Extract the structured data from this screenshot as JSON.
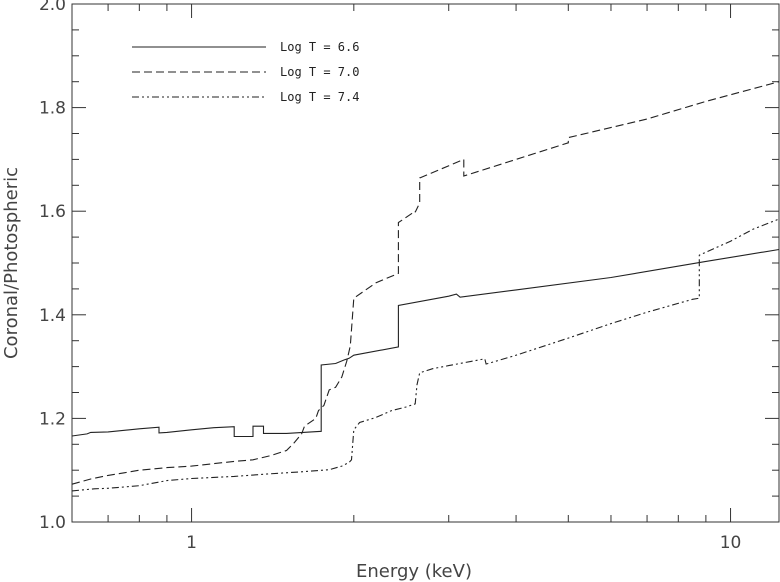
{
  "chart_data": {
    "type": "line",
    "title": "",
    "xlabel": "Energy (keV)",
    "ylabel": "Coronal/Photospheric",
    "x_scale": "log",
    "xlim": [
      0.6,
      12.3
    ],
    "ylim": [
      1.0,
      2.0
    ],
    "x_tick_labels": [
      {
        "value": 1,
        "label": "1"
      },
      {
        "value": 10,
        "label": "10"
      }
    ],
    "y_tick_labels": [
      {
        "value": 1.0,
        "label": "1.0"
      },
      {
        "value": 1.2,
        "label": "1.2"
      },
      {
        "value": 1.4,
        "label": "1.4"
      },
      {
        "value": 1.6,
        "label": "1.6"
      },
      {
        "value": 1.8,
        "label": "1.8"
      },
      {
        "value": 2.0,
        "label": "2.0"
      }
    ],
    "legend_position": "top-left",
    "series": [
      {
        "name": "Log T = 6.6",
        "style": "solid",
        "color": "#222222",
        "x": [
          0.6,
          0.64,
          0.65,
          0.7,
          0.8,
          0.87,
          0.87,
          0.9,
          1.0,
          1.1,
          1.2,
          1.2,
          1.3,
          1.3,
          1.36,
          1.36,
          1.4,
          1.5,
          1.74,
          1.74,
          1.85,
          1.92,
          1.96,
          2.0,
          2.42,
          2.42,
          3.0,
          3.1,
          3.15,
          4.0,
          6.0,
          9.0,
          12.3
        ],
        "y": [
          1.166,
          1.17,
          1.173,
          1.174,
          1.18,
          1.183,
          1.172,
          1.173,
          1.178,
          1.182,
          1.184,
          1.165,
          1.165,
          1.185,
          1.185,
          1.171,
          1.171,
          1.171,
          1.175,
          1.303,
          1.306,
          1.313,
          1.316,
          1.322,
          1.338,
          1.418,
          1.436,
          1.44,
          1.434,
          1.448,
          1.472,
          1.503,
          1.526
        ]
      },
      {
        "name": "Log T = 7.0",
        "style": "dashed",
        "color": "#222222",
        "x": [
          0.6,
          0.65,
          0.7,
          0.75,
          0.8,
          0.9,
          1.0,
          1.2,
          1.3,
          1.4,
          1.5,
          1.55,
          1.6,
          1.62,
          1.7,
          1.72,
          1.76,
          1.8,
          1.85,
          1.9,
          1.94,
          1.97,
          2.0,
          2.2,
          2.42,
          2.42,
          2.6,
          2.6,
          2.65,
          2.65,
          3.2,
          3.2,
          4.0,
          5.0,
          5.0,
          7.0,
          9.0,
          12.3
        ],
        "y": [
          1.073,
          1.083,
          1.09,
          1.095,
          1.1,
          1.105,
          1.108,
          1.117,
          1.12,
          1.128,
          1.138,
          1.153,
          1.17,
          1.185,
          1.2,
          1.215,
          1.225,
          1.255,
          1.26,
          1.28,
          1.31,
          1.34,
          1.432,
          1.462,
          1.48,
          1.578,
          1.6,
          1.598,
          1.616,
          1.664,
          1.7,
          1.668,
          1.7,
          1.732,
          1.742,
          1.778,
          1.812,
          1.85
        ]
      },
      {
        "name": "Log T = 7.4",
        "style": "dashdotdot",
        "color": "#222222",
        "x": [
          0.6,
          0.66,
          0.7,
          0.8,
          0.9,
          1.0,
          1.2,
          1.4,
          1.6,
          1.8,
          1.9,
          1.96,
          1.98,
          2.0,
          2.05,
          2.2,
          2.35,
          2.5,
          2.6,
          2.62,
          2.65,
          2.8,
          3.0,
          3.3,
          3.5,
          3.52,
          3.55,
          4.0,
          5.0,
          6.0,
          7.0,
          8.5,
          8.75,
          8.75,
          10.0,
          11.0,
          12.3
        ],
        "y": [
          1.06,
          1.064,
          1.065,
          1.07,
          1.08,
          1.084,
          1.088,
          1.093,
          1.097,
          1.101,
          1.108,
          1.115,
          1.12,
          1.178,
          1.192,
          1.202,
          1.215,
          1.222,
          1.228,
          1.265,
          1.288,
          1.296,
          1.302,
          1.31,
          1.315,
          1.305,
          1.306,
          1.322,
          1.355,
          1.383,
          1.405,
          1.43,
          1.432,
          1.515,
          1.542,
          1.565,
          1.585
        ]
      }
    ]
  }
}
